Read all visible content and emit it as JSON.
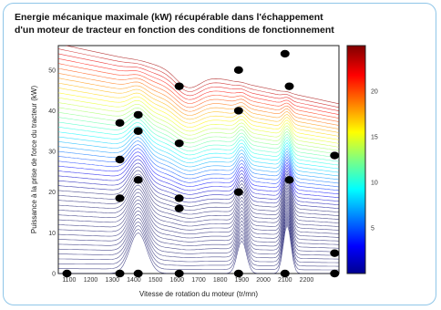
{
  "chart_data": {
    "type": "contour",
    "title_line1": "Energie mécanique maximale (kW) récupérable dans l'échappement",
    "title_line2": "d'un moteur de tracteur en fonction des conditions de fonctionnement",
    "xlabel": "Vitesse de rotation du moteur (tr/mn)",
    "ylabel": "Puissance à la prise de force du tracteur (kW)",
    "xlim": [
      1050,
      2350
    ],
    "ylim": [
      0,
      56
    ],
    "xticks": [
      1100,
      1200,
      1300,
      1400,
      1500,
      1600,
      1700,
      1800,
      1900,
      2000,
      2100,
      2200
    ],
    "yticks": [
      0,
      10,
      20,
      30,
      40,
      50
    ],
    "colorbar": {
      "range": [
        0,
        25
      ],
      "ticks": [
        5,
        10,
        15,
        20
      ],
      "colormap": [
        "#00008f",
        "#0000ff",
        "#0080ff",
        "#00ffff",
        "#80ff80",
        "#ffff00",
        "#ff8000",
        "#ff0000",
        "#800000"
      ]
    },
    "points": [
      {
        "x": 1090,
        "y": 0
      },
      {
        "x": 1335,
        "y": 0
      },
      {
        "x": 1420,
        "y": 0
      },
      {
        "x": 1610,
        "y": 0
      },
      {
        "x": 1885,
        "y": 0
      },
      {
        "x": 2100,
        "y": 0
      },
      {
        "x": 2330,
        "y": 0
      },
      {
        "x": 2330,
        "y": 5
      },
      {
        "x": 2330,
        "y": 29
      },
      {
        "x": 1335,
        "y": 18.5
      },
      {
        "x": 1335,
        "y": 28
      },
      {
        "x": 1335,
        "y": 37
      },
      {
        "x": 1420,
        "y": 23
      },
      {
        "x": 1420,
        "y": 35
      },
      {
        "x": 1420,
        "y": 39
      },
      {
        "x": 1610,
        "y": 16
      },
      {
        "x": 1610,
        "y": 18.5
      },
      {
        "x": 1610,
        "y": 32
      },
      {
        "x": 1610,
        "y": 46
      },
      {
        "x": 1885,
        "y": 20
      },
      {
        "x": 1885,
        "y": 40
      },
      {
        "x": 1885,
        "y": 50
      },
      {
        "x": 2100,
        "y": 54
      },
      {
        "x": 2120,
        "y": 46
      },
      {
        "x": 2120,
        "y": 23
      }
    ]
  }
}
